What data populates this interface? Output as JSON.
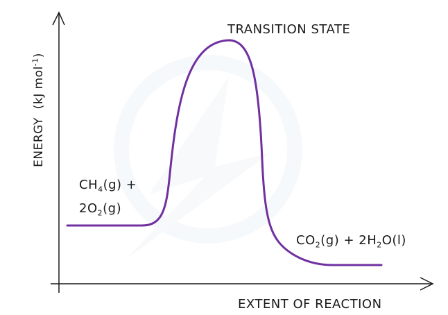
{
  "diagram": {
    "title": "TRANSITION STATE",
    "y_axis_label": "ENERGY",
    "y_axis_unit_prefix": "(kJ mol",
    "y_axis_unit_sup": "-1",
    "y_axis_unit_suffix": ")",
    "x_axis_label": "EXTENT OF REACTION",
    "reactants": {
      "line1_a": "CH",
      "line1_sub": "4",
      "line1_b": "(g) +",
      "line2_a": "2O",
      "line2_sub": "2",
      "line2_b": "(g)"
    },
    "products": {
      "a": "CO",
      "sub1": "2",
      "b": "(g) + 2H",
      "sub2": "2",
      "c": "O(l)"
    },
    "curve_color": "#7030a0"
  }
}
